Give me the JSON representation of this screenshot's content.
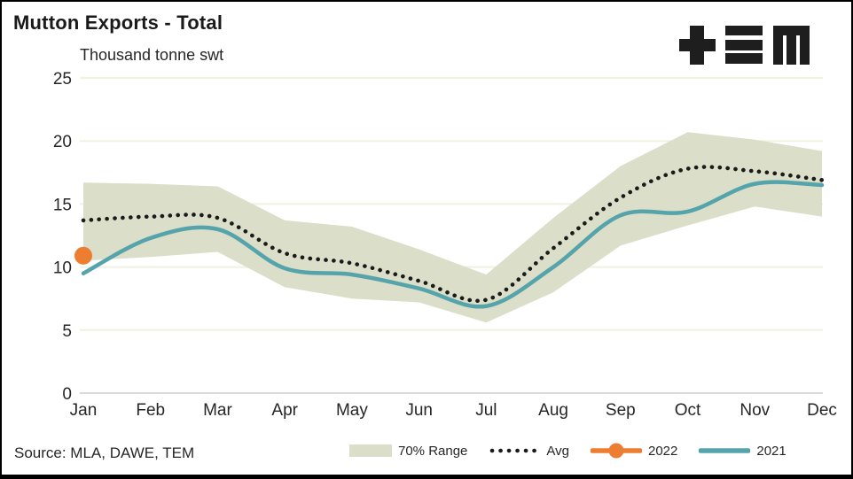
{
  "header": {
    "title": "Mutton Exports - Total",
    "units_label": "Thousand tonne swt",
    "logo_name": "TEM"
  },
  "footer": {
    "source": "Source: MLA, DAWE, TEM"
  },
  "colors": {
    "band": "#DBDEC8",
    "avg": "#1A1A1A",
    "y2022": "#ED7D31",
    "y2021": "#55A3AB",
    "gridline": "#F1F0E1",
    "zero_axis": "#D9D9D9",
    "logo": "#1E1E1E",
    "text": "#262626"
  },
  "legend": [
    {
      "key": "range",
      "marker": "band-swatch",
      "label": "70% Range",
      "color": "#DBDEC8"
    },
    {
      "key": "avg",
      "marker": "dotted-line",
      "label": "Avg",
      "color": "#1A1A1A"
    },
    {
      "key": "y2022",
      "marker": "line-circle",
      "label": "2022",
      "color": "#ED7D31"
    },
    {
      "key": "y2021",
      "marker": "solid-line",
      "label": "2021",
      "color": "#55A3AB"
    }
  ],
  "chart_data": {
    "type": "line",
    "title": "Mutton Exports - Total",
    "xlabel": "",
    "ylabel": "Thousand tonne swt",
    "categories": [
      "Jan",
      "Feb",
      "Mar",
      "Apr",
      "May",
      "Jun",
      "Jul",
      "Aug",
      "Sep",
      "Oct",
      "Nov",
      "Dec"
    ],
    "ylim": [
      0,
      25
    ],
    "yticks": [
      0,
      5,
      10,
      15,
      20,
      25
    ],
    "grid": "horizontal",
    "legend_position": "bottom",
    "series": [
      {
        "name": "70% Range",
        "type": "band",
        "color": "#DBDEC8",
        "upper": [
          16.7,
          16.6,
          16.4,
          13.7,
          13.2,
          11.4,
          9.4,
          13.9,
          18.0,
          20.7,
          20.1,
          19.2
        ],
        "lower": [
          10.5,
          10.8,
          11.2,
          8.4,
          7.5,
          7.2,
          5.6,
          8.0,
          11.7,
          13.3,
          14.8,
          14.0
        ]
      },
      {
        "name": "Avg",
        "type": "dotted-line",
        "color": "#1A1A1A",
        "values": [
          13.7,
          14.0,
          13.9,
          11.1,
          10.3,
          8.9,
          7.4,
          11.5,
          15.5,
          17.8,
          17.6,
          16.9
        ]
      },
      {
        "name": "2022",
        "type": "point",
        "color": "#ED7D31",
        "values": [
          10.9,
          null,
          null,
          null,
          null,
          null,
          null,
          null,
          null,
          null,
          null,
          null
        ]
      },
      {
        "name": "2021",
        "type": "smooth-line",
        "color": "#55A3AB",
        "values": [
          9.5,
          12.3,
          13.0,
          9.9,
          9.4,
          8.3,
          6.9,
          10.0,
          14.1,
          14.4,
          16.6,
          16.5
        ]
      }
    ]
  }
}
